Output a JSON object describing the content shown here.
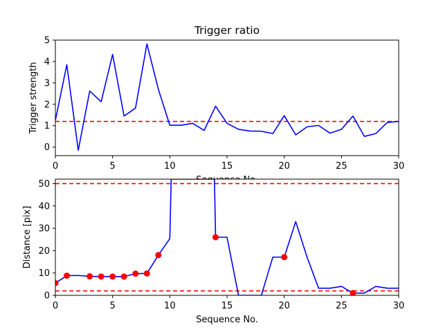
{
  "chart_data": [
    {
      "type": "line",
      "title": "Trigger ratio",
      "xlabel": "Sequence No.",
      "ylabel": "Trigger strength",
      "xlim": [
        0,
        30
      ],
      "ylim": [
        -0.4,
        5.0
      ],
      "xticks": [
        0,
        5,
        10,
        15,
        20,
        25,
        30
      ],
      "yticks": [
        0,
        1,
        2,
        3,
        4,
        5
      ],
      "grid": false,
      "series": [
        {
          "color": "#0000ff",
          "x": [
            0,
            1,
            2,
            3,
            4,
            5,
            6,
            7,
            8,
            9,
            10,
            11,
            12,
            13,
            14,
            15,
            16,
            17,
            18,
            19,
            20,
            21,
            22,
            23,
            24,
            25,
            26,
            27,
            28,
            29,
            30
          ],
          "y": [
            1.25,
            3.85,
            -0.15,
            2.62,
            2.12,
            4.33,
            1.45,
            1.82,
            4.82,
            2.7,
            1.02,
            1.02,
            1.11,
            0.78,
            1.91,
            1.11,
            0.83,
            0.75,
            0.74,
            0.63,
            1.47,
            0.57,
            0.95,
            1.01,
            0.65,
            0.83,
            1.45,
            0.5,
            0.63,
            1.15,
            1.2
          ]
        }
      ],
      "hlines": [
        {
          "y": 1.2,
          "color": "#ff0000",
          "style": "dashed"
        }
      ]
    },
    {
      "type": "line",
      "title": "",
      "xlabel": "Sequence No.",
      "ylabel": "Distance [pix]",
      "xlim": [
        0,
        30
      ],
      "ylim": [
        0,
        52
      ],
      "xticks": [
        0,
        5,
        10,
        15,
        20,
        25,
        30
      ],
      "yticks": [
        0,
        10,
        20,
        30,
        40,
        50
      ],
      "grid": false,
      "series": [
        {
          "color": "#0000ff",
          "x": [
            0,
            1,
            2,
            3,
            4,
            5,
            6,
            7,
            8,
            9,
            10,
            10.12,
            13.9,
            14,
            15,
            16,
            17,
            18,
            19,
            20,
            21,
            22,
            23,
            24,
            25,
            26,
            27,
            28,
            29,
            30
          ],
          "y": [
            5.5,
            8.8,
            8.9,
            8.5,
            8.4,
            8.4,
            8.4,
            9.7,
            9.8,
            18,
            25.4,
            52,
            52,
            26,
            26,
            0,
            0,
            0,
            17.1,
            17.1,
            33,
            17,
            3.2,
            3.2,
            4,
            1,
            1,
            4,
            3.2,
            3.2
          ]
        }
      ],
      "markers": {
        "color": "#ff0000",
        "x": [
          0,
          1,
          3,
          4,
          5,
          6,
          7,
          8,
          9,
          14,
          20,
          26
        ],
        "y": [
          5.5,
          8.8,
          8.5,
          8.4,
          8.4,
          8.4,
          9.7,
          9.8,
          18,
          26,
          17.1,
          1
        ]
      },
      "hlines": [
        {
          "y": 50,
          "color": "#ff0000",
          "style": "dashed"
        },
        {
          "y": 2,
          "color": "#ff0000",
          "style": "dashed"
        }
      ]
    }
  ]
}
